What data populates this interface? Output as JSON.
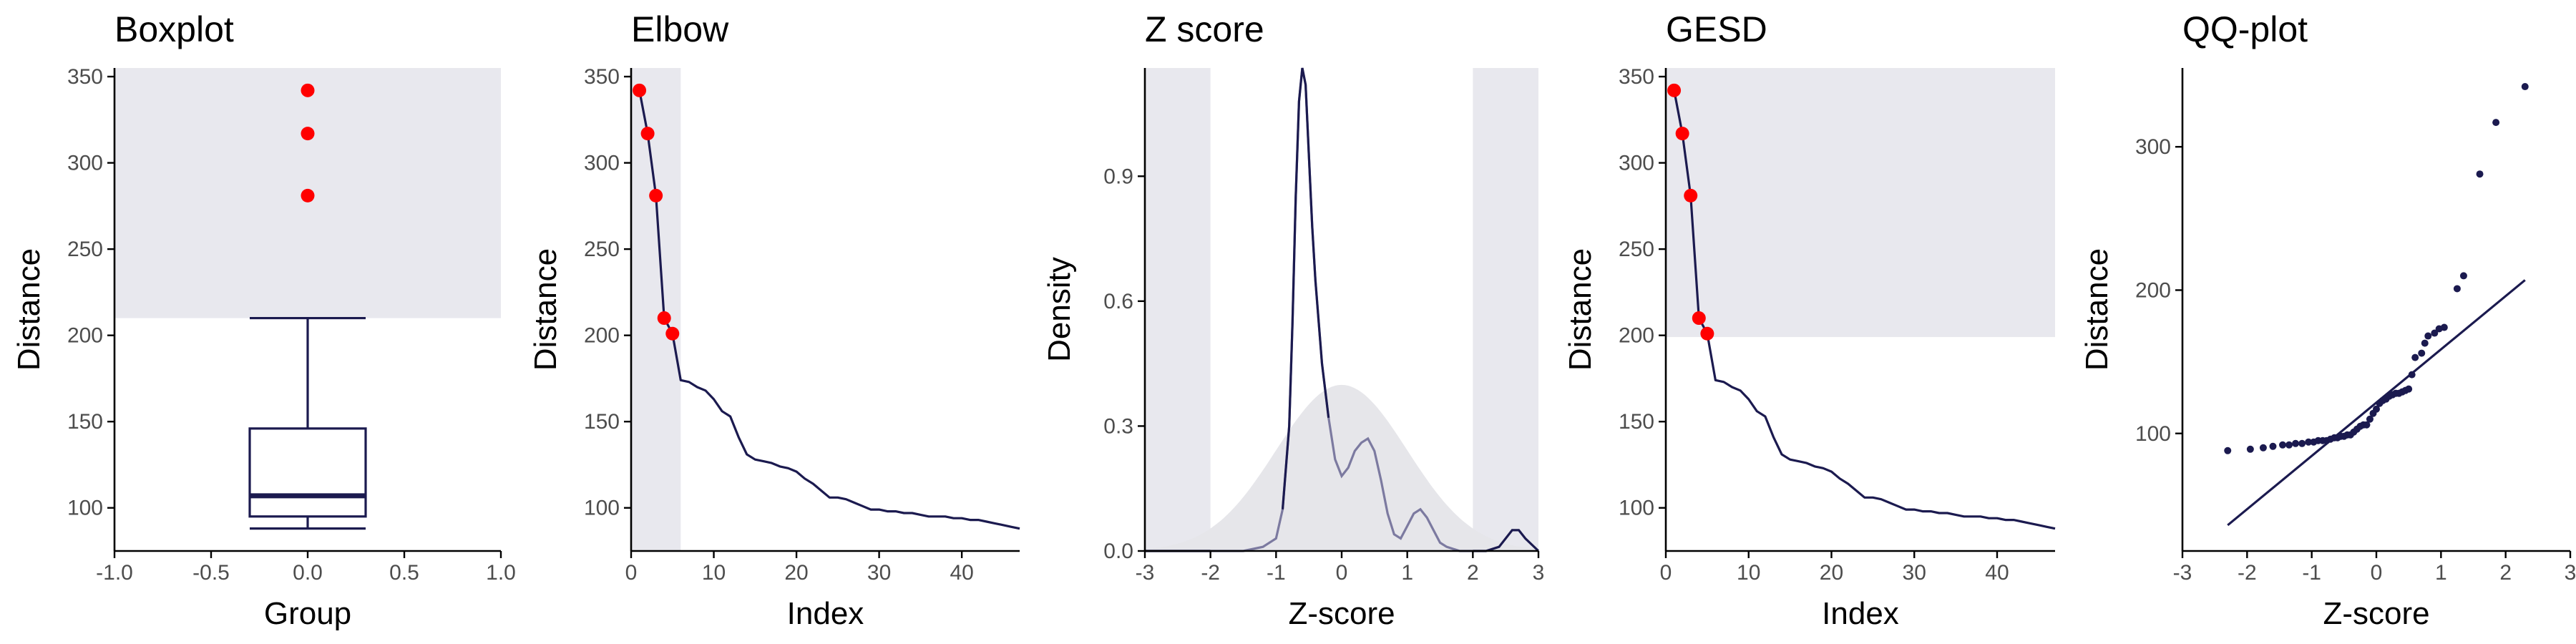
{
  "colors": {
    "line": "#1b1a4f",
    "outlier": "#ff0000",
    "region": "#e8e8ee",
    "normal_curve": "#e6e6ea",
    "density_faded": "#7c7aa0",
    "axis": "#000000",
    "tick_text": "#4d4d4d"
  },
  "chart_data": [
    {
      "type": "boxplot",
      "title": "Boxplot",
      "xlabel": "Group",
      "ylabel": "Distance",
      "xlim": [
        -1.0,
        1.0
      ],
      "ylim": [
        75,
        355
      ],
      "xticks": [
        -1.0,
        -0.5,
        0.0,
        0.5,
        1.0
      ],
      "xtick_labels": [
        "-1.0",
        "-0.5",
        "0.0",
        "0.5",
        "1.0"
      ],
      "yticks": [
        100,
        150,
        200,
        250,
        300,
        350
      ],
      "box": {
        "x": 0,
        "half_width": 0.3,
        "whisker_low": 88,
        "q1": 95,
        "median": 107,
        "q3": 146,
        "whisker_high": 210,
        "cap_half_width": 0.3
      },
      "outliers": [
        {
          "x": 0,
          "y": 342
        },
        {
          "x": 0,
          "y": 317
        },
        {
          "x": 0,
          "y": 281
        }
      ],
      "shaded_regions": [
        {
          "x0": -1.0,
          "x1": 1.0,
          "y0": 210,
          "y1": 355
        }
      ],
      "grid": false
    },
    {
      "type": "line",
      "title": "Elbow",
      "xlabel": "Index",
      "ylabel": "Distance",
      "xlim": [
        0,
        47
      ],
      "ylim": [
        75,
        355
      ],
      "xticks": [
        0,
        10,
        20,
        30,
        40
      ],
      "yticks": [
        100,
        150,
        200,
        250,
        300,
        350
      ],
      "x": [
        1,
        2,
        3,
        4,
        5,
        6,
        7,
        8,
        9,
        10,
        11,
        12,
        13,
        14,
        15,
        16,
        17,
        18,
        19,
        20,
        21,
        22,
        23,
        24,
        25,
        26,
        27,
        28,
        29,
        30,
        31,
        32,
        33,
        34,
        35,
        36,
        37,
        38,
        39,
        40,
        41,
        42,
        43,
        44,
        45,
        46,
        47
      ],
      "y": [
        342,
        317,
        281,
        210,
        201,
        174,
        173,
        170,
        168,
        163,
        156,
        153,
        141,
        131,
        128,
        127,
        126,
        124,
        123,
        121,
        117,
        114,
        110,
        106,
        106,
        105,
        103,
        101,
        99,
        99,
        98,
        98,
        97,
        97,
        96,
        95,
        95,
        95,
        94,
        94,
        93,
        93,
        92,
        91,
        90,
        89,
        88
      ],
      "outliers": [
        {
          "x": 1,
          "y": 342
        },
        {
          "x": 2,
          "y": 317
        },
        {
          "x": 3,
          "y": 281
        },
        {
          "x": 4,
          "y": 210
        },
        {
          "x": 5,
          "y": 201
        }
      ],
      "shaded_regions": [
        {
          "x0": 0,
          "x1": 6,
          "y0": 75,
          "y1": 355
        }
      ],
      "grid": false
    },
    {
      "type": "area",
      "title": "Z score",
      "xlabel": "Z-score",
      "ylabel": "Density",
      "xlim": [
        -3,
        3
      ],
      "ylim": [
        0,
        1.16
      ],
      "xticks": [
        -3,
        -2,
        -1,
        0,
        1,
        2,
        3
      ],
      "yticks": [
        0.0,
        0.3,
        0.6,
        0.9
      ],
      "ytick_labels": [
        "0.0",
        "0.3",
        "0.6",
        "0.9"
      ],
      "normal_density": true,
      "x": [
        -3.0,
        -2.0,
        -1.5,
        -1.2,
        -1.0,
        -0.9,
        -0.8,
        -0.75,
        -0.7,
        -0.65,
        -0.6,
        -0.55,
        -0.5,
        -0.45,
        -0.4,
        -0.35,
        -0.3,
        -0.2,
        -0.1,
        0.0,
        0.1,
        0.2,
        0.3,
        0.4,
        0.5,
        0.6,
        0.7,
        0.8,
        0.9,
        1.0,
        1.1,
        1.2,
        1.3,
        1.4,
        1.5,
        1.6,
        1.8,
        2.0,
        2.2,
        2.4,
        2.5,
        2.6,
        2.7,
        2.8,
        3.0
      ],
      "y": [
        0.0,
        0.0,
        0.0,
        0.01,
        0.03,
        0.1,
        0.3,
        0.55,
        0.85,
        1.08,
        1.16,
        1.12,
        0.95,
        0.78,
        0.65,
        0.55,
        0.45,
        0.32,
        0.22,
        0.18,
        0.2,
        0.24,
        0.26,
        0.27,
        0.24,
        0.17,
        0.09,
        0.04,
        0.03,
        0.06,
        0.09,
        0.1,
        0.08,
        0.05,
        0.02,
        0.01,
        0.0,
        0.0,
        0.0,
        0.01,
        0.03,
        0.05,
        0.05,
        0.03,
        0.0
      ],
      "shaded_regions": [
        {
          "x0": -3,
          "x1": -2,
          "y0": 0,
          "y1": 1.16
        },
        {
          "x0": 2,
          "x1": 3,
          "y0": 0,
          "y1": 1.16
        }
      ],
      "grid": false
    },
    {
      "type": "line",
      "title": "GESD",
      "xlabel": "Index",
      "ylabel": "Distance",
      "xlim": [
        0,
        47
      ],
      "ylim": [
        75,
        355
      ],
      "xticks": [
        0,
        10,
        20,
        30,
        40
      ],
      "yticks": [
        100,
        150,
        200,
        250,
        300,
        350
      ],
      "x": [
        1,
        2,
        3,
        4,
        5,
        6,
        7,
        8,
        9,
        10,
        11,
        12,
        13,
        14,
        15,
        16,
        17,
        18,
        19,
        20,
        21,
        22,
        23,
        24,
        25,
        26,
        27,
        28,
        29,
        30,
        31,
        32,
        33,
        34,
        35,
        36,
        37,
        38,
        39,
        40,
        41,
        42,
        43,
        44,
        45,
        46,
        47
      ],
      "y": [
        342,
        317,
        281,
        210,
        201,
        174,
        173,
        170,
        168,
        163,
        156,
        153,
        141,
        131,
        128,
        127,
        126,
        124,
        123,
        121,
        117,
        114,
        110,
        106,
        106,
        105,
        103,
        101,
        99,
        99,
        98,
        98,
        97,
        97,
        96,
        95,
        95,
        95,
        94,
        94,
        93,
        93,
        92,
        91,
        90,
        89,
        88
      ],
      "outliers": [
        {
          "x": 1,
          "y": 342
        },
        {
          "x": 2,
          "y": 317
        },
        {
          "x": 3,
          "y": 281
        },
        {
          "x": 4,
          "y": 210
        },
        {
          "x": 5,
          "y": 201
        }
      ],
      "shaded_regions": [
        {
          "x0": 0,
          "x1": 47,
          "y0": 199,
          "y1": 355
        }
      ],
      "grid": false
    },
    {
      "type": "scatter",
      "title": "QQ-plot",
      "xlabel": "Z-score",
      "ylabel": "Distance",
      "xlim": [
        -3,
        3
      ],
      "ylim": [
        18,
        355
      ],
      "xticks": [
        -3,
        -2,
        -1,
        0,
        1,
        2,
        3
      ],
      "yticks": [
        100,
        200,
        300
      ],
      "points": [
        {
          "x": -2.3,
          "y": 88
        },
        {
          "x": -1.95,
          "y": 89
        },
        {
          "x": -1.75,
          "y": 90
        },
        {
          "x": -1.6,
          "y": 91
        },
        {
          "x": -1.45,
          "y": 92
        },
        {
          "x": -1.35,
          "y": 92
        },
        {
          "x": -1.25,
          "y": 93
        },
        {
          "x": -1.15,
          "y": 93
        },
        {
          "x": -1.05,
          "y": 94
        },
        {
          "x": -0.97,
          "y": 94
        },
        {
          "x": -0.9,
          "y": 95
        },
        {
          "x": -0.83,
          "y": 95
        },
        {
          "x": -0.77,
          "y": 95
        },
        {
          "x": -0.71,
          "y": 96
        },
        {
          "x": -0.65,
          "y": 97
        },
        {
          "x": -0.6,
          "y": 97
        },
        {
          "x": -0.55,
          "y": 98
        },
        {
          "x": -0.5,
          "y": 98
        },
        {
          "x": -0.45,
          "y": 99
        },
        {
          "x": -0.4,
          "y": 99
        },
        {
          "x": -0.35,
          "y": 101
        },
        {
          "x": -0.3,
          "y": 103
        },
        {
          "x": -0.25,
          "y": 105
        },
        {
          "x": -0.2,
          "y": 106
        },
        {
          "x": -0.15,
          "y": 106
        },
        {
          "x": -0.1,
          "y": 110
        },
        {
          "x": -0.05,
          "y": 114
        },
        {
          "x": 0.0,
          "y": 117
        },
        {
          "x": 0.05,
          "y": 121
        },
        {
          "x": 0.1,
          "y": 123
        },
        {
          "x": 0.15,
          "y": 124
        },
        {
          "x": 0.2,
          "y": 126
        },
        {
          "x": 0.25,
          "y": 127
        },
        {
          "x": 0.3,
          "y": 128
        },
        {
          "x": 0.35,
          "y": 128
        },
        {
          "x": 0.4,
          "y": 129
        },
        {
          "x": 0.45,
          "y": 130
        },
        {
          "x": 0.5,
          "y": 131
        },
        {
          "x": 0.55,
          "y": 141
        },
        {
          "x": 0.6,
          "y": 153
        },
        {
          "x": 0.7,
          "y": 156
        },
        {
          "x": 0.75,
          "y": 163
        },
        {
          "x": 0.8,
          "y": 168
        },
        {
          "x": 0.9,
          "y": 170
        },
        {
          "x": 0.97,
          "y": 173
        },
        {
          "x": 1.05,
          "y": 174
        },
        {
          "x": 1.25,
          "y": 201
        },
        {
          "x": 1.35,
          "y": 210
        },
        {
          "x": 1.6,
          "y": 281
        },
        {
          "x": 1.85,
          "y": 317
        },
        {
          "x": 2.3,
          "y": 342
        }
      ],
      "reference_line": {
        "x0": -2.3,
        "x1": 2.3,
        "y0": 36,
        "y1": 207
      },
      "grid": false
    }
  ]
}
